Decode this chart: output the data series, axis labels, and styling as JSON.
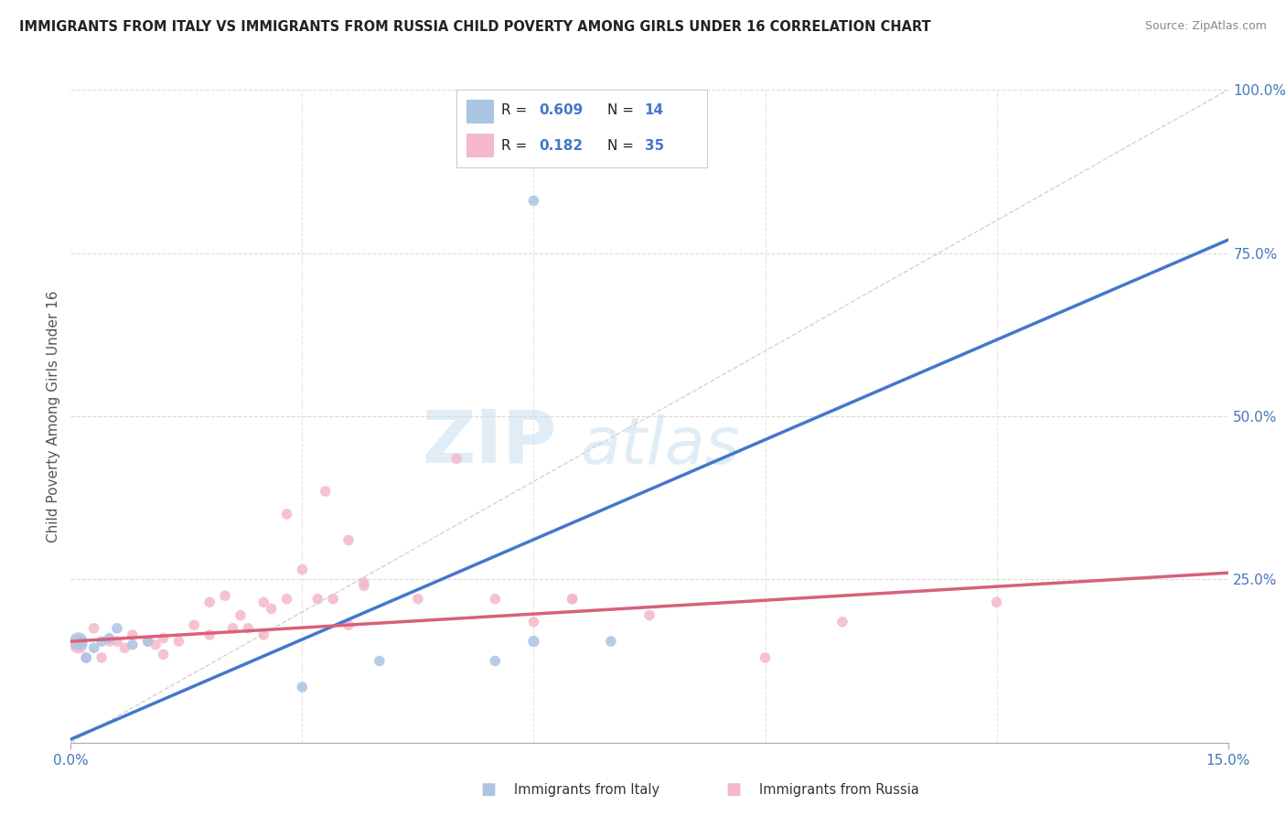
{
  "title": "IMMIGRANTS FROM ITALY VS IMMIGRANTS FROM RUSSIA CHILD POVERTY AMONG GIRLS UNDER 16 CORRELATION CHART",
  "source": "Source: ZipAtlas.com",
  "ylabel": "Child Poverty Among Girls Under 16",
  "watermark_zip": "ZIP",
  "watermark_atlas": "atlas",
  "xlim": [
    0.0,
    0.15
  ],
  "ylim": [
    0.0,
    1.0
  ],
  "italy_R": 0.609,
  "italy_N": 14,
  "russia_R": 0.182,
  "russia_N": 35,
  "italy_color": "#aac4e2",
  "russia_color": "#f5b8cb",
  "italy_line_color": "#4477cc",
  "russia_line_color": "#d9607a",
  "ref_line_color": "#c8c8c8",
  "background_color": "#ffffff",
  "grid_color": "#cccccc",
  "italy_line_x": [
    0.0,
    0.15
  ],
  "italy_line_y": [
    0.005,
    0.77
  ],
  "russia_line_x": [
    0.0,
    0.15
  ],
  "russia_line_y": [
    0.155,
    0.26
  ],
  "italy_x": [
    0.001,
    0.002,
    0.003,
    0.004,
    0.005,
    0.006,
    0.008,
    0.01,
    0.03,
    0.04,
    0.055,
    0.06,
    0.07,
    0.06
  ],
  "italy_y": [
    0.155,
    0.13,
    0.145,
    0.155,
    0.16,
    0.175,
    0.15,
    0.155,
    0.085,
    0.125,
    0.125,
    0.155,
    0.155,
    0.83
  ],
  "italy_size": [
    200,
    70,
    70,
    70,
    70,
    70,
    70,
    70,
    70,
    70,
    70,
    80,
    70,
    70
  ],
  "russia_x": [
    0.001,
    0.003,
    0.004,
    0.005,
    0.006,
    0.007,
    0.008,
    0.01,
    0.011,
    0.012,
    0.014,
    0.016,
    0.018,
    0.018,
    0.02,
    0.021,
    0.022,
    0.023,
    0.025,
    0.026,
    0.028,
    0.03,
    0.032,
    0.034,
    0.036,
    0.038,
    0.045,
    0.05,
    0.055,
    0.06,
    0.065,
    0.075,
    0.09,
    0.1,
    0.12
  ],
  "russia_y": [
    0.15,
    0.175,
    0.13,
    0.155,
    0.155,
    0.145,
    0.165,
    0.155,
    0.15,
    0.16,
    0.155,
    0.18,
    0.215,
    0.165,
    0.225,
    0.175,
    0.195,
    0.175,
    0.215,
    0.205,
    0.22,
    0.265,
    0.22,
    0.22,
    0.18,
    0.24,
    0.22,
    0.435,
    0.22,
    0.185,
    0.22,
    0.195,
    0.13,
    0.185,
    0.215
  ],
  "russia_size": [
    200,
    70,
    70,
    70,
    70,
    70,
    70,
    70,
    70,
    70,
    70,
    70,
    70,
    70,
    70,
    70,
    70,
    70,
    70,
    70,
    70,
    70,
    70,
    70,
    70,
    70,
    70,
    70,
    70,
    70,
    70,
    70,
    70,
    70,
    70
  ],
  "russia_extra_x": [
    0.002,
    0.012,
    0.025,
    0.028,
    0.033,
    0.036,
    0.038,
    0.065
  ],
  "russia_extra_y": [
    0.13,
    0.135,
    0.165,
    0.35,
    0.385,
    0.31,
    0.245,
    0.22
  ],
  "russia_extra_size": [
    70,
    70,
    70,
    70,
    70,
    70,
    70,
    70
  ]
}
